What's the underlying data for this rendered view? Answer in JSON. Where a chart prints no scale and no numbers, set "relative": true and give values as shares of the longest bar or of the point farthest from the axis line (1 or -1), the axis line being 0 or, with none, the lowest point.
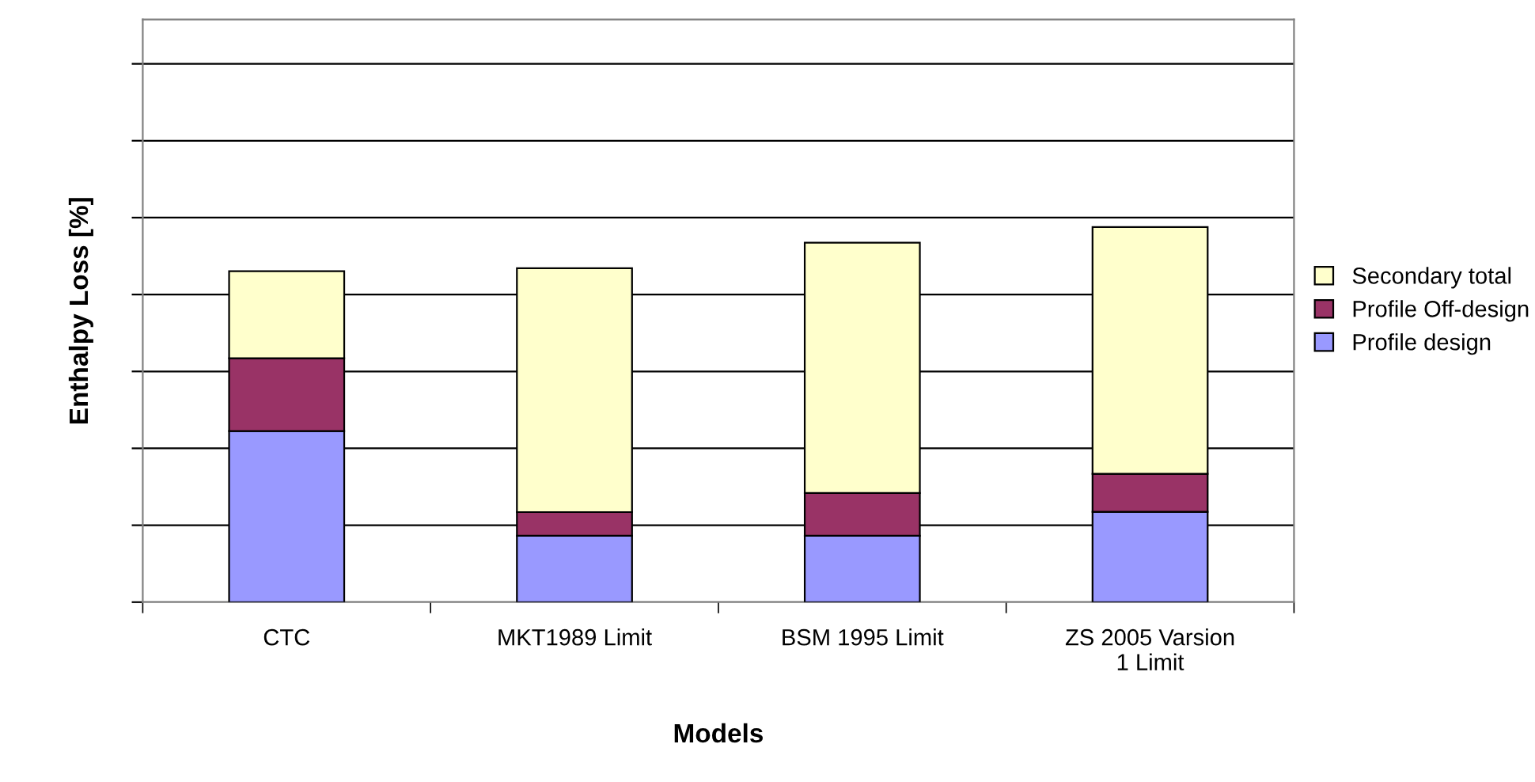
{
  "chart_data": {
    "type": "bar",
    "stacked": true,
    "relative": true,
    "xlabel": "Models",
    "ylabel": "Enthalpy Loss [%]",
    "categories": [
      "CTC",
      "MKT1989 Limit",
      "BSM 1995 Limit",
      "ZS 2005 Varsion\n1 Limit"
    ],
    "series": [
      {
        "name": "Profile design",
        "color": "#9999ff",
        "values": [
          0.456,
          0.177,
          0.177,
          0.241
        ]
      },
      {
        "name": "Profile Off-design",
        "color": "#993366",
        "values": [
          0.194,
          0.063,
          0.114,
          0.101
        ]
      },
      {
        "name": "Secondary total",
        "color": "#ffffcc",
        "values": [
          0.232,
          0.65,
          0.667,
          0.658
        ]
      }
    ],
    "grid": "y",
    "legend": "right"
  }
}
